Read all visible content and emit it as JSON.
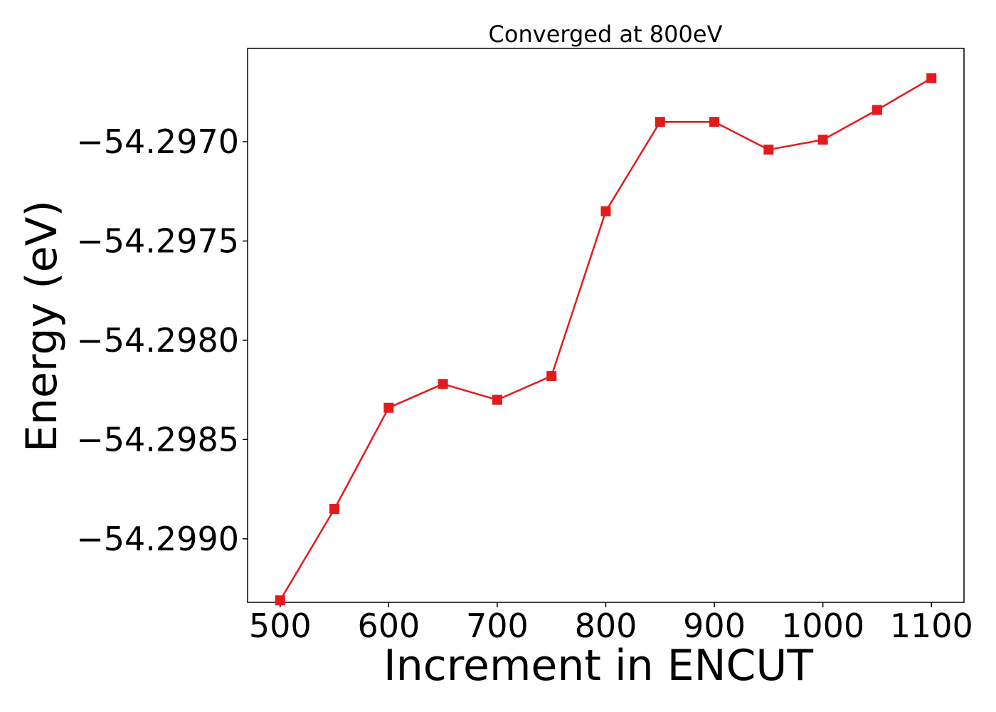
{
  "chart_data": {
    "type": "line",
    "title": "Converged at 800eV",
    "xlabel": "Increment in ENCUT",
    "ylabel": "Energy (eV)",
    "xlim": [
      470,
      1130
    ],
    "ylim": [
      -54.29932,
      -54.29653
    ],
    "xticks": [
      500,
      600,
      700,
      800,
      900,
      1000,
      1100
    ],
    "xtick_labels": [
      "500",
      "600",
      "700",
      "800",
      "900",
      "1000",
      "1100"
    ],
    "yticks": [
      -54.297,
      -54.2975,
      -54.298,
      -54.2985,
      -54.299
    ],
    "ytick_labels": [
      "−54.2970",
      "−54.2975",
      "−54.2980",
      "−54.2985",
      "−54.2990"
    ],
    "grid": false,
    "series": [
      {
        "color": "#e41a1c",
        "marker": "square",
        "x": [
          500,
          550,
          600,
          650,
          700,
          750,
          800,
          850,
          900,
          950,
          1000,
          1050,
          1100
        ],
        "y": [
          -54.29931,
          -54.29885,
          -54.29834,
          -54.29822,
          -54.2983,
          -54.29818,
          -54.29735,
          -54.2969,
          -54.2969,
          -54.29704,
          -54.29699,
          -54.29684,
          -54.29668
        ]
      }
    ]
  }
}
